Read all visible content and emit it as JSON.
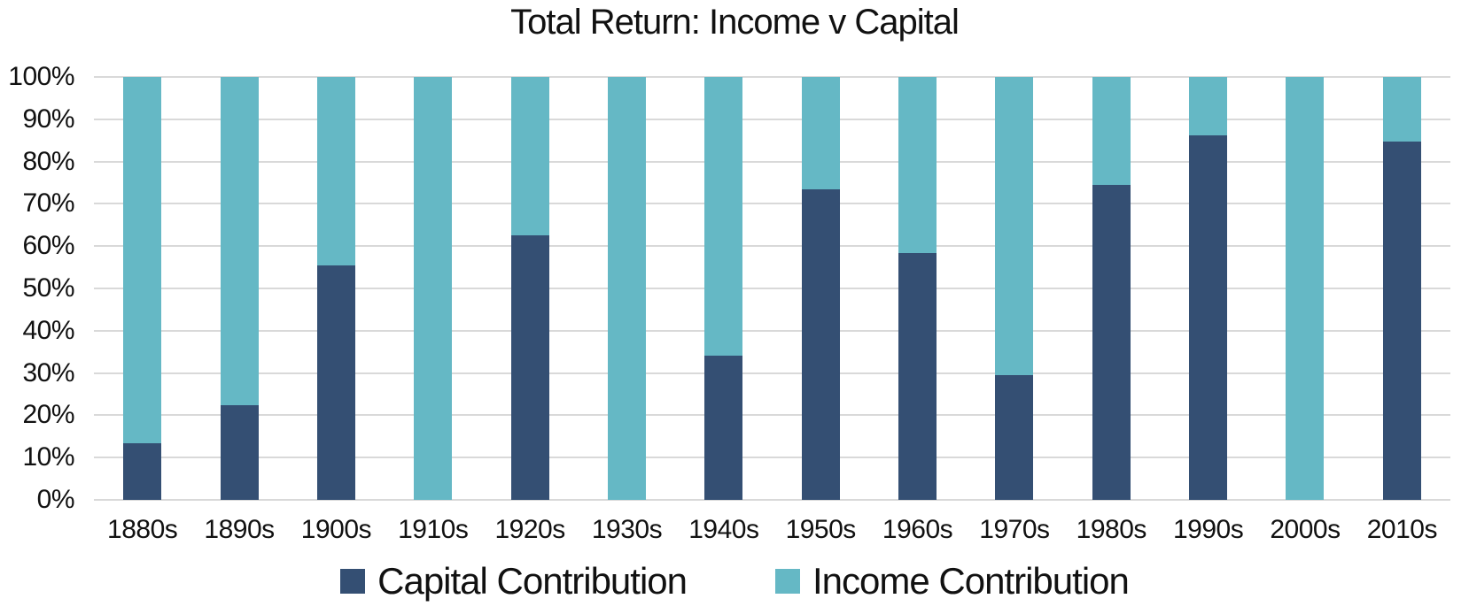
{
  "title": "Total Return: Income v Capital",
  "colors": {
    "capital": "#344F73",
    "income": "#65B8C5",
    "gridline": "#D9D9D9",
    "text": "#111111",
    "background": "#FFFFFF"
  },
  "chart_data": {
    "type": "bar",
    "stacked": true,
    "stack_total": 100,
    "title": "Total Return: Income v Capital",
    "categories": [
      "1880s",
      "1890s",
      "1900s",
      "1910s",
      "1920s",
      "1930s",
      "1940s",
      "1950s",
      "1960s",
      "1970s",
      "1980s",
      "1990s",
      "2000s",
      "2010s"
    ],
    "series": [
      {
        "name": "Capital Contribution",
        "color": "#344F73",
        "values": [
          13.4,
          22.3,
          55.4,
          0,
          62.5,
          0,
          34.0,
          73.5,
          58.4,
          29.5,
          74.5,
          86.1,
          0,
          84.8
        ]
      },
      {
        "name": "Income Contribution",
        "color": "#65B8C5",
        "values": [
          86.6,
          77.7,
          44.6,
          100,
          37.5,
          100,
          66.0,
          26.5,
          41.6,
          70.5,
          25.5,
          13.9,
          100,
          15.2
        ]
      }
    ],
    "xlabel": "",
    "ylabel": "",
    "ylim": [
      0,
      100
    ],
    "yticks": [
      "0%",
      "10%",
      "20%",
      "30%",
      "40%",
      "50%",
      "60%",
      "70%",
      "80%",
      "90%",
      "100%"
    ],
    "ytick_values": [
      0,
      10,
      20,
      30,
      40,
      50,
      60,
      70,
      80,
      90,
      100
    ],
    "grid": "horizontal",
    "legend_position": "bottom"
  }
}
